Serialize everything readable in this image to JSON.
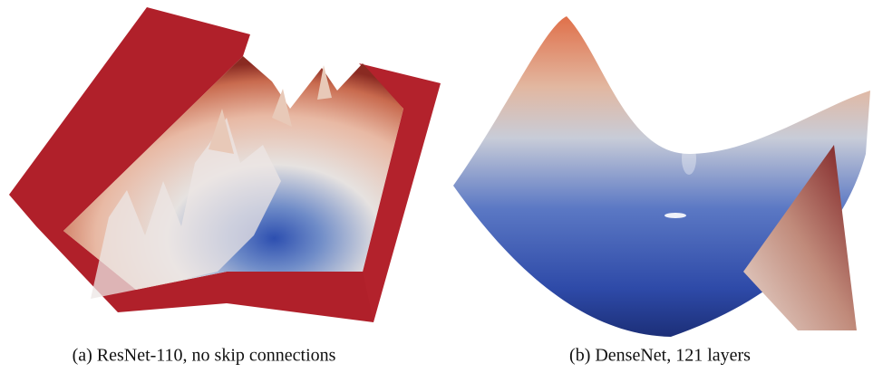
{
  "figures": [
    {
      "caption": "(a) ResNet-110, no skip connections"
    },
    {
      "caption": "(b) DenseNet, 121 layers"
    }
  ]
}
